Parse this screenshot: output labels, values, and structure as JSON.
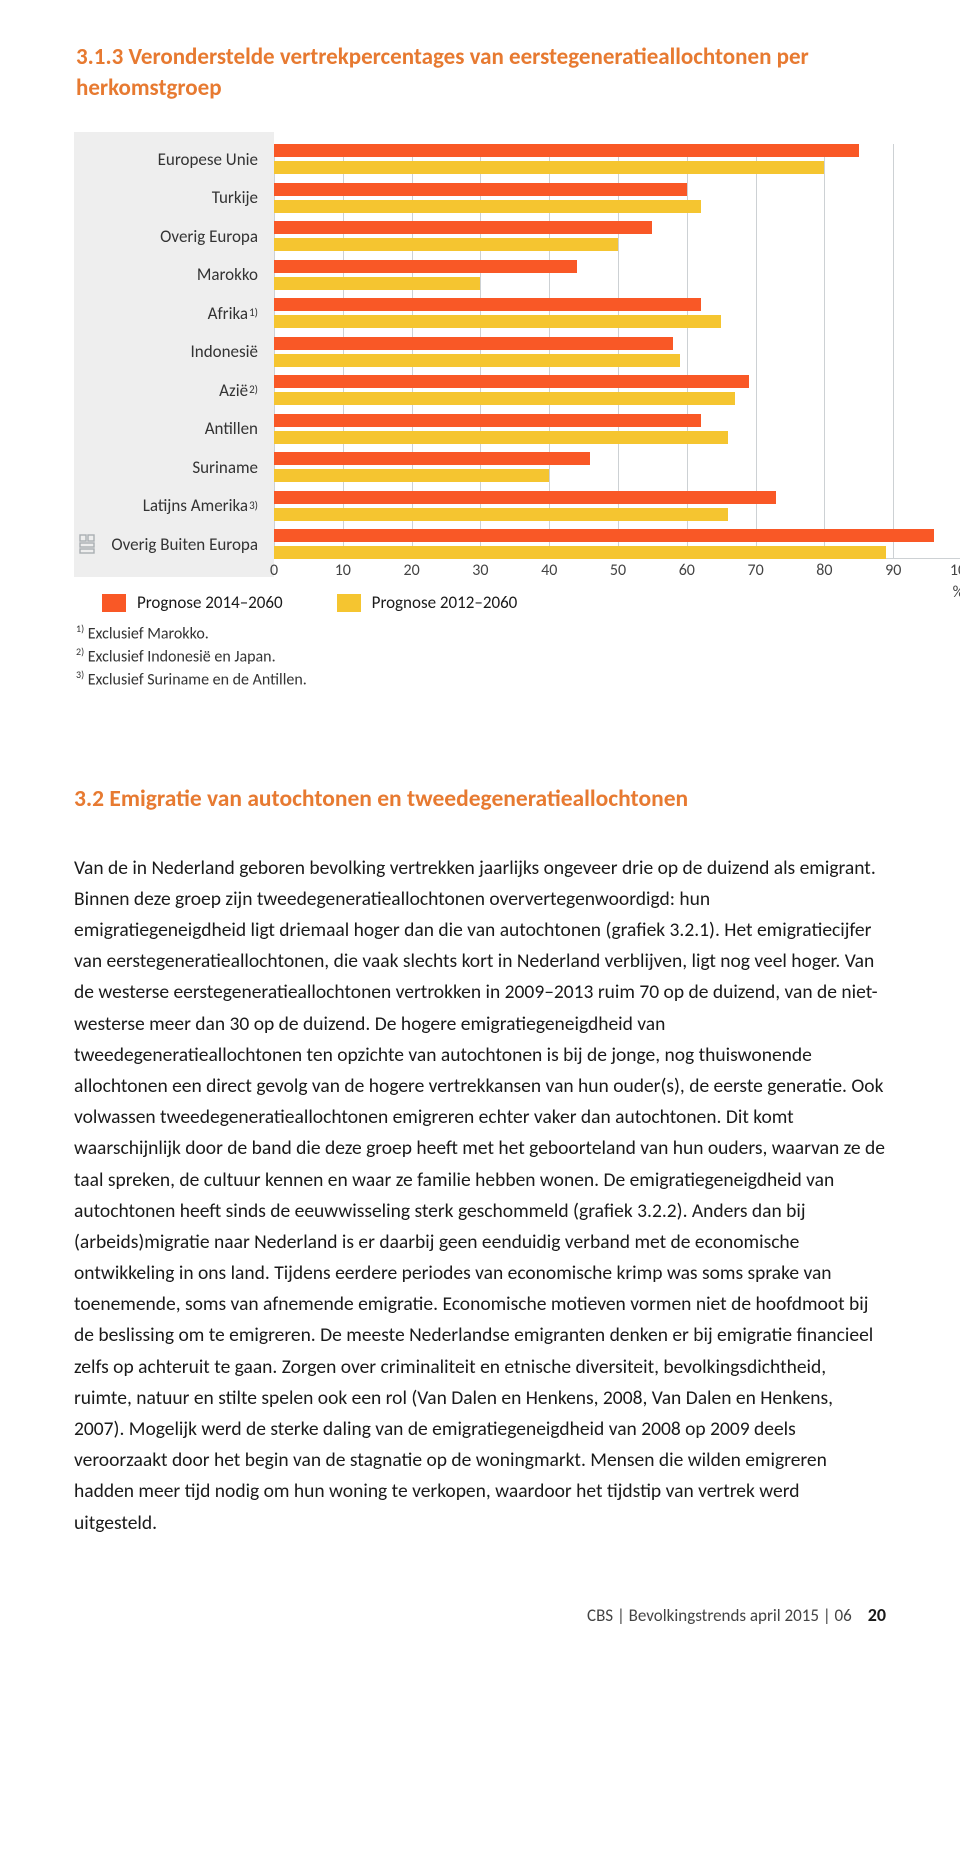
{
  "colors": {
    "accent": "#e77a31",
    "bar1": "#f95826",
    "bar2": "#f5c530",
    "grid": "#cdd1d4",
    "left_bg": "#eeeeee",
    "text": "#1a1a1a"
  },
  "chart": {
    "title": "3.1.3   Veronderstelde vertrekpercentages van eerstegeneratieallochtonen per herkomstgroep",
    "type": "bar",
    "x_min": 0,
    "x_max": 100,
    "x_step": 10,
    "unit": "%",
    "categories": [
      {
        "label": "Europese Unie",
        "sup": "",
        "v1": 85,
        "v2": 80
      },
      {
        "label": "Turkije",
        "sup": "",
        "v1": 60,
        "v2": 62
      },
      {
        "label": "Overig Europa",
        "sup": "",
        "v1": 55,
        "v2": 50
      },
      {
        "label": "Marokko",
        "sup": "",
        "v1": 44,
        "v2": 30
      },
      {
        "label": "Afrika",
        "sup": "1)",
        "v1": 62,
        "v2": 65
      },
      {
        "label": "Indonesië",
        "sup": "",
        "v1": 58,
        "v2": 59
      },
      {
        "label": "Azië",
        "sup": "2)",
        "v1": 69,
        "v2": 67
      },
      {
        "label": "Antillen",
        "sup": "",
        "v1": 62,
        "v2": 66
      },
      {
        "label": "Suriname",
        "sup": "",
        "v1": 46,
        "v2": 40
      },
      {
        "label": "Latijns Amerika",
        "sup": "3)",
        "v1": 73,
        "v2": 66
      },
      {
        "label": "Overig Buiten Europa",
        "sup": "",
        "v1": 96,
        "v2": 89
      }
    ],
    "legend": [
      {
        "label": "Prognose 2014–2060",
        "color": "#f95826"
      },
      {
        "label": "Prognose 2012–2060",
        "color": "#f5c530"
      }
    ],
    "footnotes": [
      "Exclusief Marokko.",
      "Exclusief Indonesië en Japan.",
      "Exclusief Suriname en de Antillen."
    ]
  },
  "section_heading": "3.2  Emigratie van autochtonen en tweedegeneratieallochtonen",
  "paragraph": "Van de in Nederland geboren bevolking vertrekken jaarlijks ongeveer drie op de duizend als emigrant. Binnen deze groep zijn tweedegeneratieallochtonen oververtegenwoordigd: hun emigratiegeneigdheid ligt driemaal hoger dan die van autochtonen (grafiek 3.2.1). Het emigratiecijfer van eerstegeneratieallochtonen, die vaak slechts kort in Nederland verblijven, ligt nog veel hoger. Van de westerse eerstegeneratieallochtonen vertrokken in 2009–2013 ruim 70 op de duizend, van de niet-westerse meer dan 30 op de duizend. De hogere emigratiegeneigdheid van tweedegeneratieallochtonen ten opzichte van autochtonen is bij de jonge, nog thuiswonende allochtonen een direct gevolg van de hogere vertrekkansen van hun ouder(s), de eerste generatie. Ook volwassen tweedegeneratieallochtonen emigreren echter vaker dan autochtonen. Dit komt waarschijnlijk door de band die deze groep heeft met het geboorteland van hun ouders, waarvan ze de taal spreken, de cultuur kennen en waar ze familie hebben wonen. De emigratiegeneigdheid van autochtonen heeft sinds de eeuwwisseling sterk geschommeld (grafiek 3.2.2). Anders dan bij (arbeids)migratie naar Nederland is er daarbij geen eenduidig verband met de economische ontwikkeling in ons land. Tijdens eerdere periodes van economische krimp was soms sprake van toenemende, soms van afnemende emigratie. Economische motieven vormen niet de hoofdmoot bij de beslissing om te emigreren. De meeste Nederlandse emigranten denken er bij emigratie financieel zelfs op achteruit te gaan. Zorgen over criminaliteit en etnische diversiteit, bevolkingsdichtheid, ruimte, natuur en stilte spelen ook een rol (Van Dalen en Henkens, 2008, Van Dalen en Henkens, 2007). Mogelijk werd de sterke daling van de emigratiegeneigdheid van 2008 op 2009 deels veroorzaakt door het begin van de stagnatie op de woningmarkt. Mensen die wilden emigreren hadden meer tijd nodig om hun woning te verkopen, waardoor het tijdstip van vertrek werd uitgesteld.",
  "footer": {
    "text": "CBS | Bevolkingstrends april 2015 | 06",
    "page": "20"
  }
}
